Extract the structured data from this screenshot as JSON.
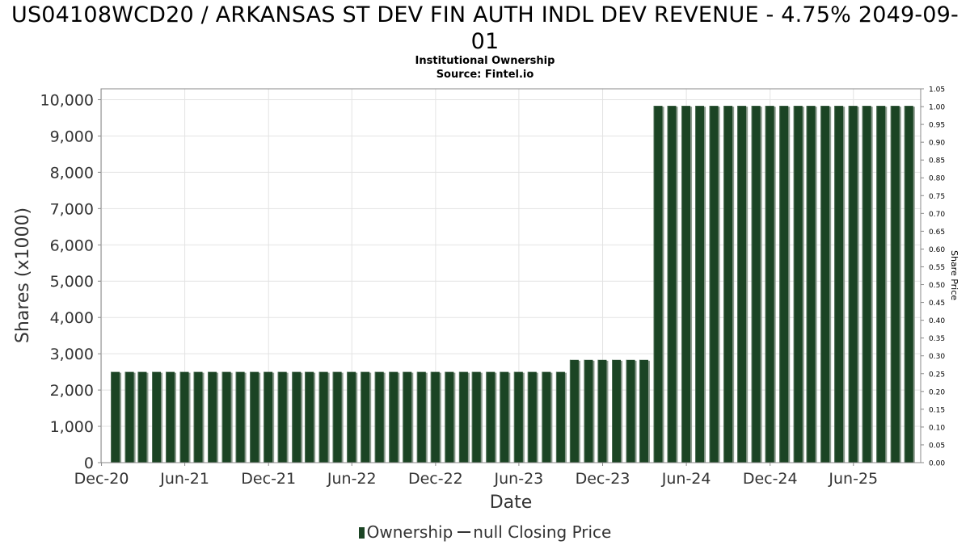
{
  "title": "US04108WCD20 / ARKANSAS ST DEV FIN AUTH INDL DEV REVENUE - 4.75% 2049-09-01",
  "subtitle_lines": [
    "Institutional Ownership",
    "Source: Fintel.io"
  ],
  "legend": {
    "ownership_label": "Ownership",
    "price_label": "null Closing Price"
  },
  "colors": {
    "bar": "#1b4424",
    "bar_shadow": "#8a9a8c",
    "grid": "#e3e3e3",
    "axis": "#888888"
  },
  "chart_data": {
    "type": "bar",
    "xlabel": "Date",
    "ylabel": "Shares (x1000)",
    "y2label": "Share Price",
    "ylim": [
      0,
      10300
    ],
    "y2lim": [
      0,
      1.05
    ],
    "x_start": "2020-11-30",
    "x_end": "2025-10-26",
    "x_ticks": [
      {
        "date": "2020-12-01",
        "label": "Dec-20"
      },
      {
        "date": "2021-06-01",
        "label": "Jun-21"
      },
      {
        "date": "2021-12-01",
        "label": "Dec-21"
      },
      {
        "date": "2022-06-01",
        "label": "Jun-22"
      },
      {
        "date": "2022-12-01",
        "label": "Dec-22"
      },
      {
        "date": "2023-06-01",
        "label": "Jun-23"
      },
      {
        "date": "2023-12-01",
        "label": "Dec-23"
      },
      {
        "date": "2024-06-01",
        "label": "Jun-24"
      },
      {
        "date": "2024-12-01",
        "label": "Dec-24"
      },
      {
        "date": "2025-06-01",
        "label": "Jun-25"
      }
    ],
    "y_ticks": [
      {
        "value": 0,
        "label": "0"
      },
      {
        "value": 1000,
        "label": "1,000"
      },
      {
        "value": 2000,
        "label": "2,000"
      },
      {
        "value": 3000,
        "label": "3,000"
      },
      {
        "value": 4000,
        "label": "4,000"
      },
      {
        "value": 5000,
        "label": "5,000"
      },
      {
        "value": 6000,
        "label": "6,000"
      },
      {
        "value": 7000,
        "label": "7,000"
      },
      {
        "value": 8000,
        "label": "8,000"
      },
      {
        "value": 9000,
        "label": "9,000"
      },
      {
        "value": 10000,
        "label": "10,000"
      }
    ],
    "y2_ticks": [
      "0.00",
      "0.05",
      "0.10",
      "0.15",
      "0.20",
      "0.25",
      "0.30",
      "0.35",
      "0.40",
      "0.45",
      "0.50",
      "0.55",
      "0.60",
      "0.65",
      "0.70",
      "0.75",
      "0.80",
      "0.85",
      "0.90",
      "0.95",
      "1.00",
      "1.05"
    ],
    "grid": true,
    "legend_position": "bottom",
    "series": [
      {
        "name": "Ownership",
        "points": [
          {
            "x": "2020-12-31",
            "y": 2500
          },
          {
            "x": "2021-01-31",
            "y": 2500
          },
          {
            "x": "2021-02-28",
            "y": 2500
          },
          {
            "x": "2021-03-31",
            "y": 2500
          },
          {
            "x": "2021-04-30",
            "y": 2500
          },
          {
            "x": "2021-05-31",
            "y": 2500
          },
          {
            "x": "2021-06-30",
            "y": 2500
          },
          {
            "x": "2021-07-31",
            "y": 2500
          },
          {
            "x": "2021-08-31",
            "y": 2500
          },
          {
            "x": "2021-09-30",
            "y": 2500
          },
          {
            "x": "2021-10-31",
            "y": 2500
          },
          {
            "x": "2021-11-30",
            "y": 2500
          },
          {
            "x": "2021-12-31",
            "y": 2500
          },
          {
            "x": "2022-01-31",
            "y": 2500
          },
          {
            "x": "2022-02-28",
            "y": 2500
          },
          {
            "x": "2022-03-31",
            "y": 2500
          },
          {
            "x": "2022-04-30",
            "y": 2500
          },
          {
            "x": "2022-05-31",
            "y": 2500
          },
          {
            "x": "2022-06-30",
            "y": 2500
          },
          {
            "x": "2022-07-31",
            "y": 2500
          },
          {
            "x": "2022-08-31",
            "y": 2500
          },
          {
            "x": "2022-09-30",
            "y": 2500
          },
          {
            "x": "2022-10-31",
            "y": 2500
          },
          {
            "x": "2022-11-30",
            "y": 2500
          },
          {
            "x": "2022-12-31",
            "y": 2500
          },
          {
            "x": "2023-01-31",
            "y": 2500
          },
          {
            "x": "2023-02-28",
            "y": 2500
          },
          {
            "x": "2023-03-31",
            "y": 2500
          },
          {
            "x": "2023-04-30",
            "y": 2500
          },
          {
            "x": "2023-05-31",
            "y": 2500
          },
          {
            "x": "2023-06-30",
            "y": 2500
          },
          {
            "x": "2023-07-31",
            "y": 2500
          },
          {
            "x": "2023-08-31",
            "y": 2500
          },
          {
            "x": "2023-09-30",
            "y": 2830
          },
          {
            "x": "2023-10-31",
            "y": 2830
          },
          {
            "x": "2023-11-30",
            "y": 2830
          },
          {
            "x": "2023-12-31",
            "y": 2830
          },
          {
            "x": "2024-01-31",
            "y": 2830
          },
          {
            "x": "2024-02-29",
            "y": 2830
          },
          {
            "x": "2024-03-31",
            "y": 9830
          },
          {
            "x": "2024-04-30",
            "y": 9830
          },
          {
            "x": "2024-05-31",
            "y": 9830
          },
          {
            "x": "2024-06-30",
            "y": 9830
          },
          {
            "x": "2024-07-31",
            "y": 9830
          },
          {
            "x": "2024-08-31",
            "y": 9830
          },
          {
            "x": "2024-09-30",
            "y": 9830
          },
          {
            "x": "2024-10-31",
            "y": 9830
          },
          {
            "x": "2024-11-30",
            "y": 9830
          },
          {
            "x": "2024-12-31",
            "y": 9830
          },
          {
            "x": "2025-01-31",
            "y": 9830
          },
          {
            "x": "2025-02-28",
            "y": 9830
          },
          {
            "x": "2025-03-31",
            "y": 9830
          },
          {
            "x": "2025-04-30",
            "y": 9830
          },
          {
            "x": "2025-05-31",
            "y": 9830
          },
          {
            "x": "2025-06-30",
            "y": 9830
          },
          {
            "x": "2025-07-31",
            "y": 9830
          },
          {
            "x": "2025-08-31",
            "y": 9830
          },
          {
            "x": "2025-09-30",
            "y": 9830
          }
        ]
      }
    ]
  }
}
